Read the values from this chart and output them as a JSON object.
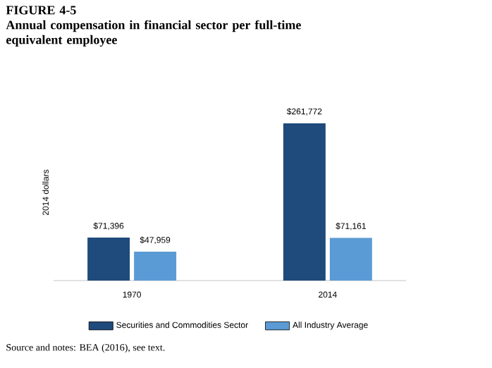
{
  "chart_data": {
    "type": "bar",
    "title": "FIGURE 4-5",
    "subtitle": "Annual compensation in financial sector per full-time equivalent employee",
    "ylabel": "2014 dollars",
    "categories": [
      "1970",
      "2014"
    ],
    "series": [
      {
        "name": "Securities and Commodities Sector",
        "color": "#1f4a7c",
        "values": [
          71396,
          261772
        ],
        "value_labels": [
          "$71,396",
          "$261,772"
        ]
      },
      {
        "name": "All Industry Average",
        "color": "#5b9bd5",
        "values": [
          47959,
          71161
        ],
        "value_labels": [
          "$47,959",
          "$71,161"
        ]
      }
    ],
    "legend": "bottom",
    "annotations": [
      "Source and notes: BEA (2016), see text."
    ]
  }
}
